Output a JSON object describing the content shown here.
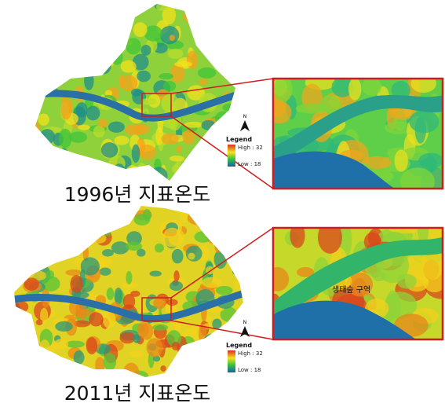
{
  "panels": [
    {
      "caption": "1996년 지표온도",
      "north": "N",
      "legend": {
        "title": "Legend",
        "high": "High : 32",
        "low": "Low : 18"
      }
    },
    {
      "caption": "2011년 지표온도",
      "north": "N",
      "legend": {
        "title": "Legend",
        "high": "High : 32",
        "low": "Low : 18"
      },
      "annotation": "생태숲 구역"
    }
  ]
}
